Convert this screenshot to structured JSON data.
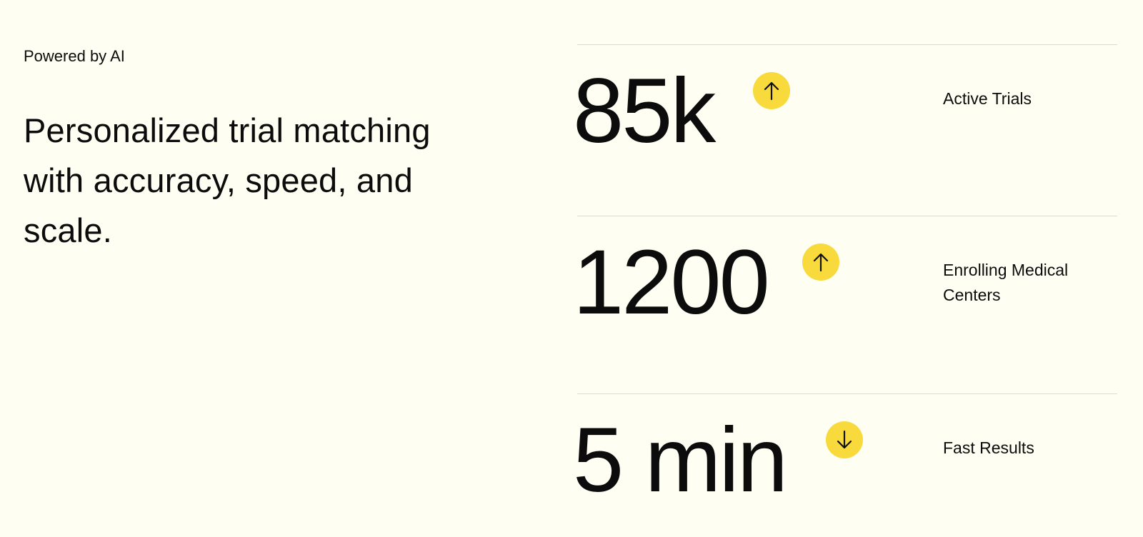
{
  "intro": {
    "eyebrow": "Powered by AI",
    "headline": "Personalized trial matching with accuracy, speed, and scale."
  },
  "stats": [
    {
      "value": "85k",
      "label": "Active Trials",
      "trend": "up",
      "icon": "arrow-up-icon"
    },
    {
      "value": "1200",
      "label": "Enrolling Medical Centers",
      "trend": "up",
      "icon": "arrow-up-icon"
    },
    {
      "value": "5 min",
      "label": "Fast Results",
      "trend": "down",
      "icon": "arrow-down-icon"
    }
  ],
  "colors": {
    "background": "#fefef2",
    "text": "#0c0c0c",
    "accent": "#f8da3c",
    "divider": "#dcdcd2"
  }
}
